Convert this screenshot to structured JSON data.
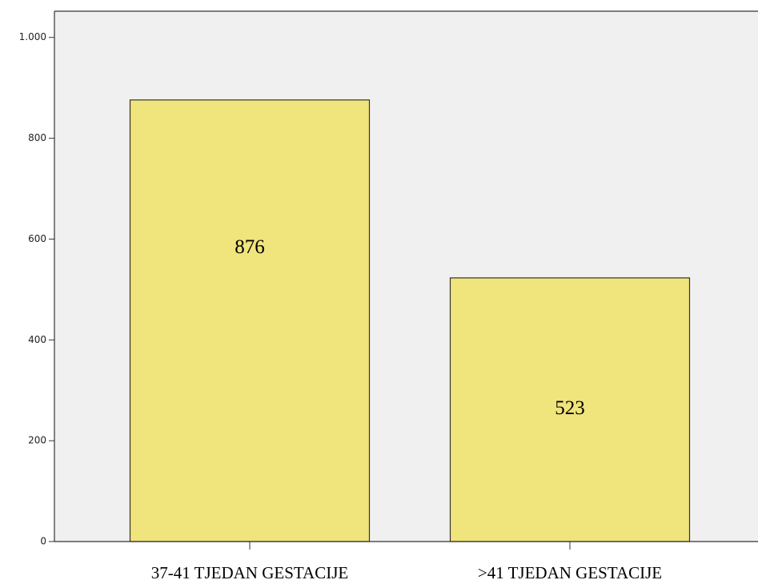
{
  "chart_data": {
    "type": "bar",
    "categories": [
      "37-41 TJEDAN GESTACIJE",
      ">41 TJEDAN GESTACIJE"
    ],
    "values": [
      876,
      523
    ],
    "color": "#f0e47c",
    "ylim": [
      0,
      1052
    ],
    "yticks": [
      0,
      200,
      400,
      600,
      800,
      {
        "value": 1000,
        "label": "1.000"
      }
    ],
    "grid": false
  }
}
